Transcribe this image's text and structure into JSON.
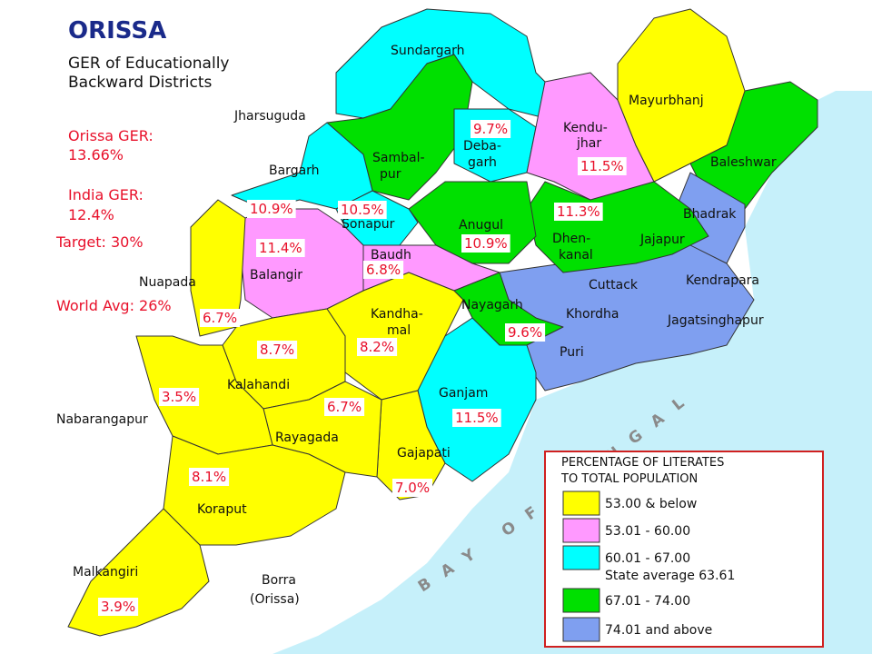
{
  "title": "ORISSA",
  "subtitle": [
    "GER of Educationally",
    "Backward Districts"
  ],
  "stats": [
    "Orissa GER:",
    "13.66%",
    "India GER:",
    "12.4%",
    "Target: 30%",
    "World Avg: 26%"
  ],
  "districts": [
    {
      "name": [
        "Sundargarh"
      ]
    },
    {
      "name": [
        "Jharsuguda"
      ]
    },
    {
      "name": [
        "Sambal-",
        "pur"
      ]
    },
    {
      "name": [
        "Deba-",
        "garh"
      ],
      "ger": "9.7%"
    },
    {
      "name": [
        "Kendu-",
        "jhar"
      ],
      "ger": "11.5%"
    },
    {
      "name": [
        "Mayurbhanj"
      ]
    },
    {
      "name": [
        "Baleshwar"
      ]
    },
    {
      "name": [
        "Bargarh"
      ],
      "ger": "10.9%"
    },
    {
      "name": [
        "Sonapur"
      ],
      "ger": "10.5%"
    },
    {
      "name": [
        "Anugul"
      ],
      "ger": "10.9%"
    },
    {
      "name": [
        "Dhen-",
        "kanal"
      ],
      "ger": "11.3%"
    },
    {
      "name": [
        "Jajapur"
      ]
    },
    {
      "name": [
        "Bhadrak"
      ]
    },
    {
      "name": [
        "Balangir"
      ],
      "ger": "11.4%"
    },
    {
      "name": [
        "Baudh"
      ],
      "ger": "6.8%"
    },
    {
      "name": [
        "Cuttack"
      ]
    },
    {
      "name": [
        "Kendrapara"
      ]
    },
    {
      "name": [
        "Nuapada"
      ],
      "ger": "6.7%"
    },
    {
      "name": [
        "Kandha-",
        "mal"
      ],
      "ger": "8.2%"
    },
    {
      "name": [
        "Nayagarh"
      ],
      "ger": "9.6%"
    },
    {
      "name": [
        "Khordha"
      ]
    },
    {
      "name": [
        "Jagatsinghapur"
      ]
    },
    {
      "name": [
        "Kalahandi"
      ],
      "ger": "8.7%"
    },
    {
      "name": [
        "Puri"
      ]
    },
    {
      "name": [
        "Nabarangapur"
      ],
      "ger": "3.5%"
    },
    {
      "name": [
        "Ganjam"
      ],
      "ger": "11.5%"
    },
    {
      "name": [
        "Rayagada"
      ],
      "ger": "6.7%"
    },
    {
      "name": [
        "Gajapati"
      ],
      "ger": "7.0%"
    },
    {
      "name": [
        "Koraput"
      ],
      "ger": "8.1%"
    },
    {
      "name": [
        "Malkangiri"
      ],
      "ger": "3.9%"
    }
  ],
  "place": [
    "Borra",
    "(Orissa)"
  ],
  "sea": "BAY OF BENGAL",
  "legend": {
    "title": [
      "PERCENTAGE OF LITERATES",
      "TO TOTAL POPULATION"
    ],
    "items": [
      {
        "label": [
          "53.00 & below"
        ],
        "color": "#ffff00"
      },
      {
        "label": [
          "53.01 - 60.00"
        ],
        "color": "#ff99ff"
      },
      {
        "label": [
          "60.01 - 67.00",
          "State average 63.61"
        ],
        "color": "#00ffff"
      },
      {
        "label": [
          "67.01 - 74.00"
        ],
        "color": "#00e000"
      },
      {
        "label": [
          "74.01 and above"
        ],
        "color": "#7f9ff0"
      }
    ]
  }
}
